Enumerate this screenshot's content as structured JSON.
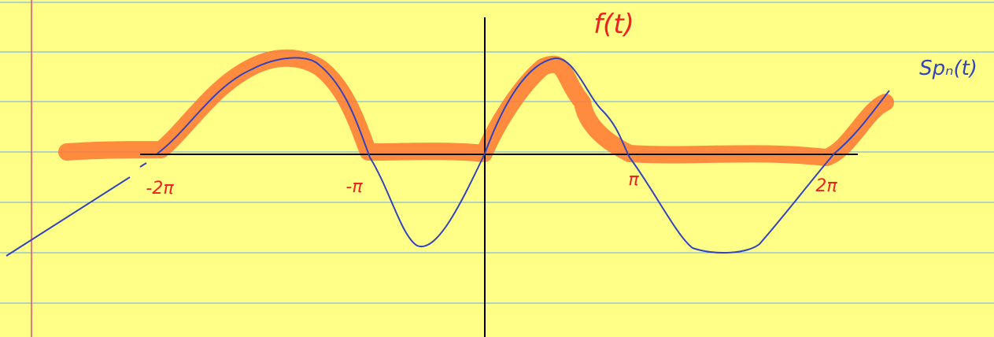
{
  "title": "f(t)",
  "series_label": "Spₙ(t)",
  "axis_labels": [
    "-2π",
    "-π",
    "π",
    "2π"
  ]
}
